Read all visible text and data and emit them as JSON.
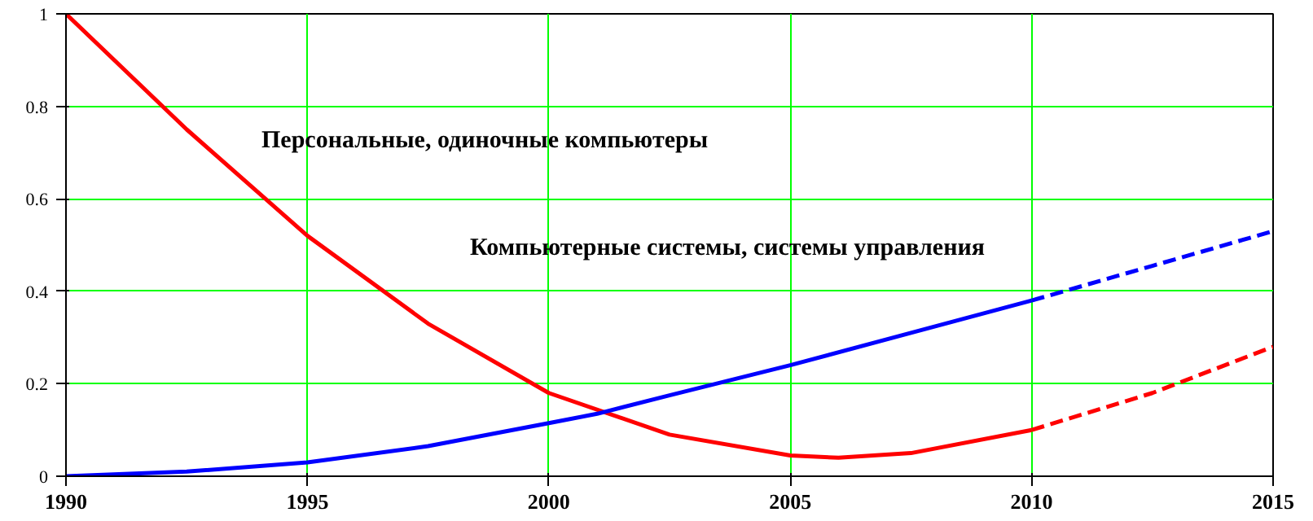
{
  "chart_data": {
    "type": "line",
    "xlim": [
      1990,
      2015
    ],
    "ylim": [
      0,
      1
    ],
    "xticks": [
      1990,
      1995,
      2000,
      2005,
      2010,
      2015
    ],
    "yticks": [
      0,
      0.2,
      0.4,
      0.6,
      0.8,
      1
    ],
    "grid": true,
    "marker": "none",
    "series": [
      {
        "color": "#ff0000",
        "line_style": "solid",
        "x": [
          1990,
          1992.5,
          1995,
          1997.5,
          2000,
          2002.5,
          2005,
          2006,
          2007.5,
          2010
        ],
        "values": [
          1.0,
          0.75,
          0.52,
          0.33,
          0.18,
          0.09,
          0.045,
          0.04,
          0.05,
          0.1
        ]
      },
      {
        "color": "#ff0000",
        "line_style": "dashed",
        "x": [
          2010,
          2012.5,
          2015
        ],
        "values": [
          0.1,
          0.18,
          0.28
        ]
      },
      {
        "color": "#0000ff",
        "line_style": "solid",
        "x": [
          1990,
          1992.5,
          1995,
          1997.5,
          2000,
          2001,
          2002.5,
          2005,
          2007.5,
          2010
        ],
        "values": [
          0,
          0.01,
          0.03,
          0.065,
          0.115,
          0.135,
          0.175,
          0.24,
          0.31,
          0.38
        ]
      },
      {
        "color": "#0000ff",
        "line_style": "dashed",
        "x": [
          2010,
          2012.5,
          2015
        ],
        "values": [
          0.38,
          0.455,
          0.53
        ]
      }
    ],
    "annotations": [
      "Персональные, одиночные компьютеры",
      "Компьютерные системы, системы управления"
    ]
  }
}
